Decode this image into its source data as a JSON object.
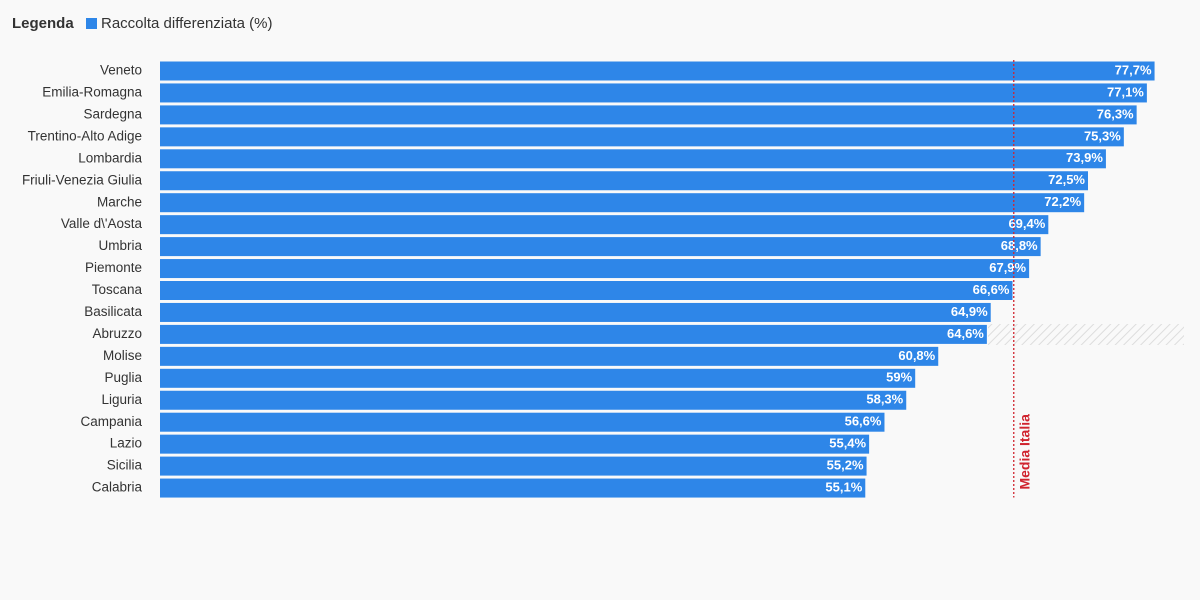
{
  "chart_data": {
    "type": "bar",
    "orientation": "horizontal",
    "legend_title": "Legenda",
    "series": [
      {
        "name": "Raccolta differenziata (%)",
        "color": "#2e86e8",
        "values": [
          77.7,
          77.1,
          76.3,
          75.3,
          73.9,
          72.5,
          72.2,
          69.4,
          68.8,
          67.9,
          66.6,
          64.9,
          64.6,
          60.8,
          59,
          58.3,
          56.6,
          55.4,
          55.2,
          55.1
        ],
        "value_labels": [
          "77,7%",
          "77,1%",
          "76,3%",
          "75,3%",
          "73,9%",
          "72,5%",
          "72,2%",
          "69,4%",
          "68,8%",
          "67,9%",
          "66,6%",
          "64,9%",
          "64,6%",
          "60,8%",
          "59%",
          "58,3%",
          "56,6%",
          "55,4%",
          "55,2%",
          "55,1%"
        ]
      }
    ],
    "categories": [
      "Veneto",
      "Emilia-Romagna",
      "Sardegna",
      "Trentino-Alto Adige",
      "Lombardia",
      "Friuli-Venezia Giulia",
      "Marche",
      "Valle d\\'Aosta",
      "Umbria",
      "Piemonte",
      "Toscana",
      "Basilicata",
      "Abruzzo",
      "Molise",
      "Puglia",
      "Liguria",
      "Campania",
      "Lazio",
      "Sicilia",
      "Calabria"
    ],
    "xlim": [
      0,
      80
    ],
    "reference_line": {
      "label": "Media Italia",
      "value": 66.7,
      "color": "#d0242f"
    }
  }
}
